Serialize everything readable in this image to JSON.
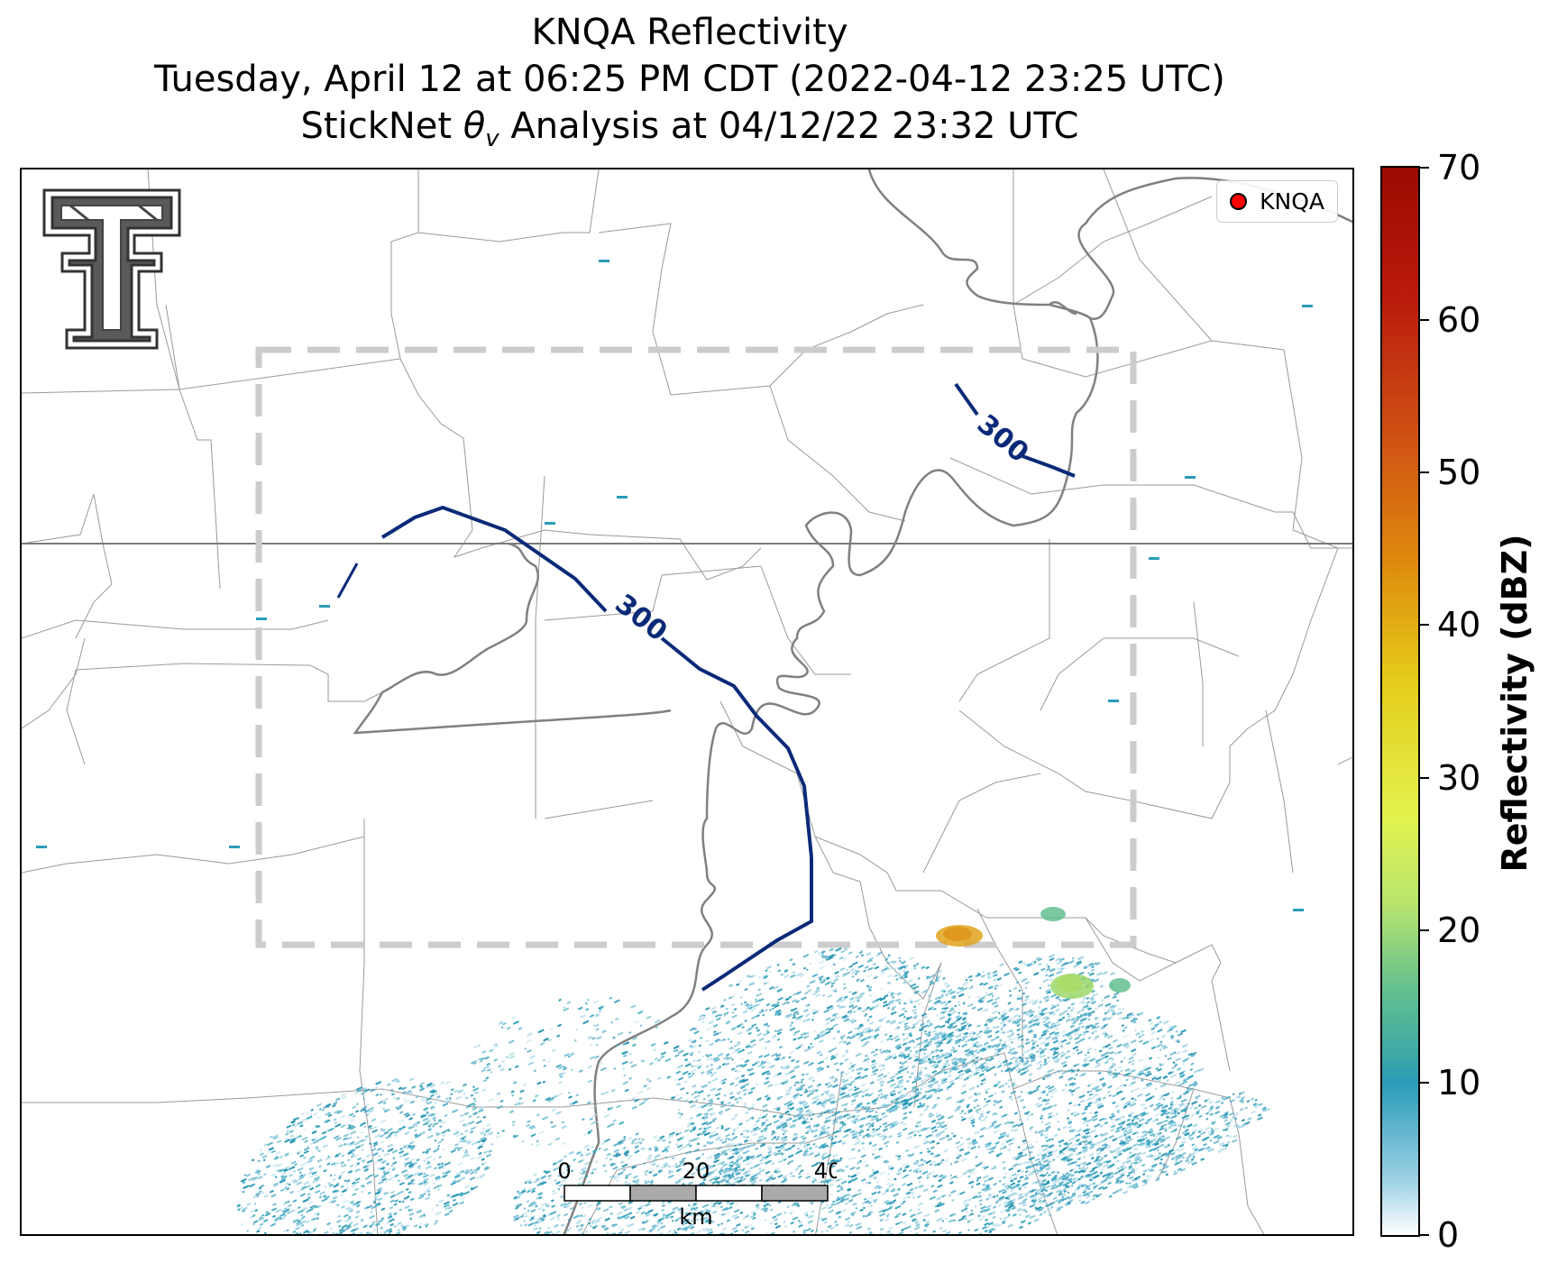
{
  "title": {
    "line1": "KNQA Reflectivity",
    "line2": "Tuesday, April 12 at 06:25 PM CDT (2022-04-12 23:25 UTC)",
    "line3_prefix": "StickNet ",
    "line3_symbol": "θ",
    "line3_subscript": "v",
    "line3_suffix": " Analysis at 04/12/22 23:32 UTC"
  },
  "legend": {
    "label": "KNQA",
    "marker_color": "#ff0000"
  },
  "contours": [
    {
      "level": "300",
      "color": "#0a2a78"
    },
    {
      "level": "300",
      "color": "#0a2a78"
    }
  ],
  "scale_bar": {
    "ticks": [
      "0",
      "20",
      "40"
    ],
    "unit": "km"
  },
  "colorbar": {
    "label": "Reflectivity (dBZ)",
    "ticks": [
      "0",
      "10",
      "20",
      "30",
      "40",
      "50",
      "60",
      "70"
    ],
    "range": [
      0,
      70
    ],
    "colors": [
      "#ffffff",
      "#2a9bb8",
      "#63c08f",
      "#e3f34f",
      "#e5cc1a",
      "#de8a0e",
      "#cf5014",
      "#9c0a00"
    ]
  },
  "colors": {
    "state_line": "#7a7a7a",
    "county_line": "#9a9a9a",
    "river": "#808080",
    "domain_box": "#c8c8c8"
  }
}
